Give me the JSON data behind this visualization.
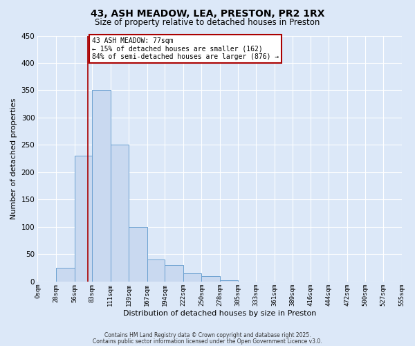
{
  "title": "43, ASH MEADOW, LEA, PRESTON, PR2 1RX",
  "subtitle": "Size of property relative to detached houses in Preston",
  "xlabel": "Distribution of detached houses by size in Preston",
  "ylabel": "Number of detached properties",
  "bin_edges": [
    0,
    28,
    56,
    83,
    111,
    139,
    167,
    194,
    222,
    250,
    278,
    305,
    333,
    361,
    389,
    416,
    444,
    472,
    500,
    527,
    555
  ],
  "bin_counts": [
    0,
    25,
    230,
    350,
    250,
    100,
    40,
    30,
    15,
    10,
    2,
    0,
    0,
    0,
    0,
    0,
    0,
    0,
    0,
    0
  ],
  "bar_facecolor": "#c9d9f0",
  "bar_edgecolor": "#6aa0d0",
  "background_color": "#dce8f8",
  "grid_color": "#ffffff",
  "vline_x": 77,
  "vline_color": "#aa0000",
  "annotation_text": "43 ASH MEADOW: 77sqm\n← 15% of detached houses are smaller (162)\n84% of semi-detached houses are larger (876) →",
  "annotation_box_facecolor": "#ffffff",
  "annotation_box_edgecolor": "#aa0000",
  "ylim": [
    0,
    450
  ],
  "yticks": [
    0,
    50,
    100,
    150,
    200,
    250,
    300,
    350,
    400,
    450
  ],
  "tick_labels": [
    "0sqm",
    "28sqm",
    "56sqm",
    "83sqm",
    "111sqm",
    "139sqm",
    "167sqm",
    "194sqm",
    "222sqm",
    "250sqm",
    "278sqm",
    "305sqm",
    "333sqm",
    "361sqm",
    "389sqm",
    "416sqm",
    "444sqm",
    "472sqm",
    "500sqm",
    "527sqm",
    "555sqm"
  ],
  "footnote1": "Contains HM Land Registry data © Crown copyright and database right 2025.",
  "footnote2": "Contains public sector information licensed under the Open Government Licence v3.0."
}
